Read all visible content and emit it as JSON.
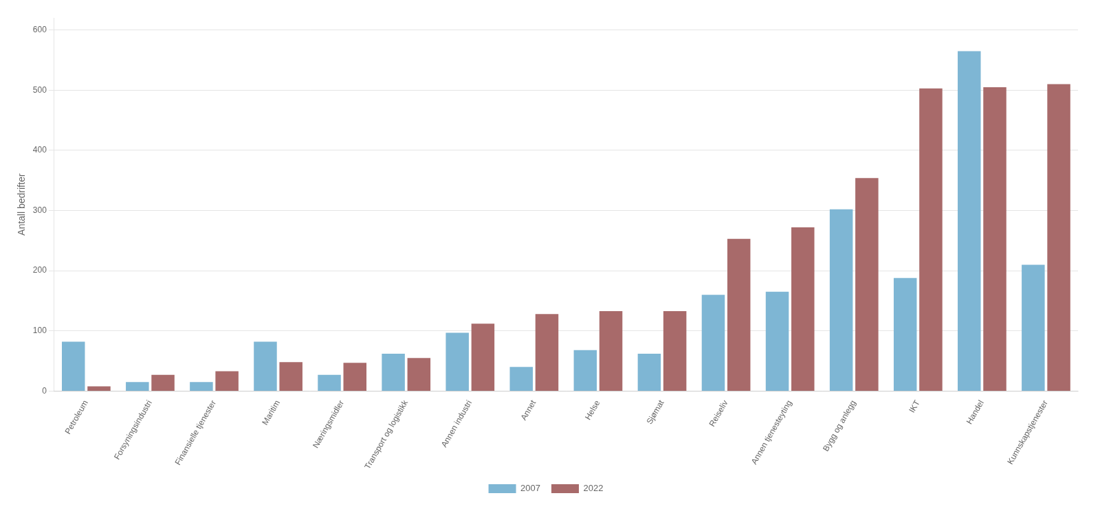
{
  "chart_data": {
    "type": "bar",
    "categories": [
      "Petroleum",
      "Forsyningsindustri",
      "Finansielle tjenester",
      "Maritim",
      "Næringsmidler",
      "Transport og logistikk",
      "Annen industri",
      "Annet",
      "Helse",
      "Sjømat",
      "Reiseliv",
      "Annen tjenesteyting",
      "Bygg og anlegg",
      "IKT",
      "Handel",
      "Kunnskapstjenester"
    ],
    "series": [
      {
        "name": "2007",
        "color": "#7EB6D4",
        "values": [
          82,
          15,
          15,
          82,
          27,
          62,
          97,
          40,
          68,
          62,
          160,
          165,
          302,
          188,
          565,
          210
        ]
      },
      {
        "name": "2022",
        "color": "#A86A6A",
        "values": [
          8,
          27,
          33,
          48,
          47,
          55,
          112,
          128,
          133,
          133,
          253,
          272,
          354,
          503,
          505,
          510
        ]
      }
    ],
    "ylabel": "Antall bedrifter",
    "ylim": [
      0,
      620
    ],
    "yticks": [
      0,
      100,
      200,
      300,
      400,
      500,
      600
    ],
    "grid": true,
    "legend": "bottom"
  }
}
